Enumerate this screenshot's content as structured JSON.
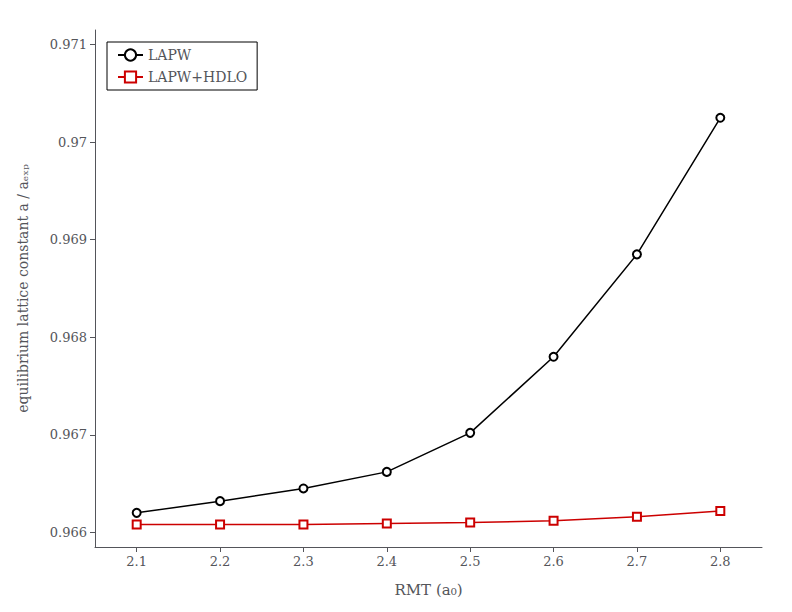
{
  "chart_data": {
    "type": "line",
    "xlabel": "RMT (a₀)",
    "ylabel": "equilibrium lattice constant a / aₑₓₚ",
    "x": [
      2.1,
      2.2,
      2.3,
      2.4,
      2.5,
      2.6,
      2.7,
      2.8
    ],
    "series": [
      {
        "name": "LAPW",
        "color": "#000000",
        "marker": "circle",
        "values": [
          0.9662,
          0.96632,
          0.96645,
          0.96662,
          0.96702,
          0.9678,
          0.96885,
          0.97025
        ]
      },
      {
        "name": "LAPW+HDLO",
        "color": "#cc0000",
        "marker": "square",
        "values": [
          0.96608,
          0.96608,
          0.96608,
          0.96609,
          0.9661,
          0.96612,
          0.96616,
          0.96622
        ]
      }
    ],
    "xlim": [
      2.05,
      2.85
    ],
    "xticks": [
      2.1,
      2.2,
      2.3,
      2.4,
      2.5,
      2.6,
      2.7,
      2.8
    ],
    "ylim": [
      0.96585,
      0.97115
    ],
    "yticks": [
      0.966,
      0.967,
      0.968,
      0.969,
      0.97,
      0.971
    ],
    "grid": false,
    "legend": "upper left"
  }
}
